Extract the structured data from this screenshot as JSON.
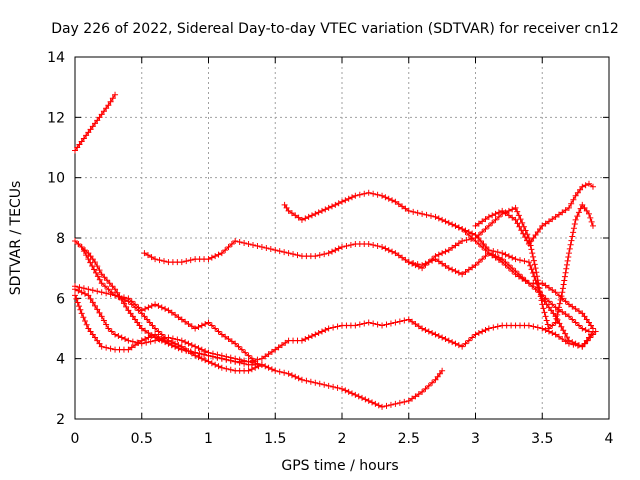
{
  "chart_data": {
    "type": "scatter",
    "title": "Day 226 of 2022, Sidereal Day-to-day VTEC variation (SDTVAR) for receiver cn12",
    "xlabel": "GPS time / hours",
    "ylabel": "SDTVAR / TECUs",
    "xlim": [
      0,
      4
    ],
    "ylim": [
      2,
      14
    ],
    "xticks": [
      "0",
      "0.5",
      "1",
      "1.5",
      "2",
      "2.5",
      "3",
      "3.5",
      "4"
    ],
    "yticks": [
      "2",
      "4",
      "6",
      "8",
      "10",
      "12",
      "14"
    ],
    "grid": true,
    "marker": "+",
    "color": "#ff0000",
    "series": [
      {
        "name": "s1",
        "x": [
          0.0,
          0.05,
          0.1,
          0.15,
          0.2,
          0.25,
          0.3
        ],
        "y": [
          10.9,
          11.2,
          11.5,
          11.8,
          12.1,
          12.4,
          12.75
        ]
      },
      {
        "name": "s2",
        "x": [
          0.0,
          0.05,
          0.1,
          0.2,
          0.3,
          0.4,
          0.5,
          0.6,
          0.7,
          0.8,
          0.9,
          1.0,
          1.1,
          1.2,
          1.3,
          1.35,
          1.4,
          1.5,
          1.6,
          1.7,
          1.8,
          1.9,
          2.0,
          2.1,
          2.2,
          2.3,
          2.4,
          2.5,
          2.6,
          2.7,
          2.75
        ],
        "y": [
          7.9,
          7.7,
          7.3,
          6.5,
          6.1,
          5.9,
          5.5,
          5.0,
          4.6,
          4.4,
          4.1,
          3.9,
          3.7,
          3.6,
          3.6,
          3.7,
          3.8,
          3.6,
          3.5,
          3.3,
          3.2,
          3.1,
          3.0,
          2.8,
          2.6,
          2.4,
          2.5,
          2.6,
          2.9,
          3.3,
          3.6
        ]
      },
      {
        "name": "s3",
        "x": [
          0.0,
          0.05,
          0.1,
          0.15,
          0.2,
          0.3,
          0.4,
          0.5,
          0.6,
          0.7,
          0.8,
          0.9,
          1.0,
          1.1,
          1.2,
          1.3,
          1.4,
          1.5,
          1.6,
          1.7,
          1.8,
          1.9,
          2.0,
          2.1,
          2.2,
          2.3,
          2.4,
          2.5,
          2.6,
          2.7,
          2.8,
          2.9,
          3.0,
          3.1,
          3.2,
          3.3,
          3.4,
          3.5,
          3.6,
          3.7,
          3.8,
          3.9
        ],
        "y": [
          6.1,
          5.5,
          5.0,
          4.7,
          4.4,
          4.3,
          4.3,
          4.6,
          4.8,
          4.5,
          4.3,
          4.2,
          4.1,
          4.0,
          3.9,
          3.9,
          4.0,
          4.3,
          4.6,
          4.6,
          4.8,
          5.0,
          5.1,
          5.1,
          5.2,
          5.1,
          5.2,
          5.3,
          5.0,
          4.8,
          4.6,
          4.4,
          4.8,
          5.0,
          5.1,
          5.1,
          5.1,
          5.0,
          4.8,
          4.5,
          4.4,
          4.9
        ]
      },
      {
        "name": "s4",
        "x": [
          0.0,
          0.1,
          0.2,
          0.3,
          0.4,
          0.5,
          0.6,
          0.7,
          0.8,
          0.9,
          1.0,
          1.1,
          1.2,
          1.3,
          1.35
        ],
        "y": [
          6.4,
          6.3,
          6.2,
          6.1,
          6.0,
          5.6,
          5.8,
          5.6,
          5.3,
          5.0,
          5.2,
          4.8,
          4.5,
          4.1,
          3.9
        ]
      },
      {
        "name": "s5",
        "x": [
          0.0,
          0.1,
          0.2,
          0.25,
          0.3,
          0.4,
          0.5,
          0.6,
          0.7,
          0.8,
          0.9,
          1.0,
          1.1,
          1.2,
          1.3,
          1.4
        ],
        "y": [
          6.3,
          6.1,
          5.4,
          5.0,
          4.8,
          4.6,
          4.5,
          4.6,
          4.7,
          4.6,
          4.4,
          4.2,
          4.1,
          4.0,
          3.9,
          3.8
        ]
      },
      {
        "name": "s6",
        "x": [
          0.52,
          0.6,
          0.7,
          0.8,
          0.9,
          1.0,
          1.1,
          1.2,
          1.3,
          1.4,
          1.5,
          1.6,
          1.7,
          1.8,
          1.9,
          2.0,
          2.1,
          2.2,
          2.3,
          2.4,
          2.5,
          2.6,
          2.7,
          2.8,
          2.9,
          3.0,
          3.1,
          3.2,
          3.3,
          3.4,
          3.45,
          3.5,
          3.55,
          3.6,
          3.65,
          3.7,
          3.75,
          3.8,
          3.85,
          3.88
        ],
        "y": [
          7.5,
          7.3,
          7.2,
          7.2,
          7.3,
          7.3,
          7.5,
          7.9,
          7.8,
          7.7,
          7.6,
          7.5,
          7.4,
          7.4,
          7.5,
          7.7,
          7.8,
          7.8,
          7.7,
          7.5,
          7.2,
          7.0,
          7.4,
          7.6,
          7.9,
          8.0,
          8.4,
          8.8,
          9.0,
          8.0,
          7.0,
          5.8,
          5.0,
          5.2,
          6.2,
          7.5,
          8.6,
          9.1,
          8.8,
          8.4
        ]
      },
      {
        "name": "s7",
        "x": [
          1.57,
          1.6,
          1.7,
          1.8,
          1.9,
          2.0,
          2.1,
          2.2,
          2.3,
          2.4,
          2.5,
          2.6,
          2.7,
          2.8,
          2.9,
          3.0,
          3.1,
          3.2,
          3.3,
          3.4,
          3.5,
          3.6,
          3.7,
          3.75,
          3.8,
          3.85
        ],
        "y": [
          9.1,
          8.9,
          8.6,
          8.8,
          9.0,
          9.2,
          9.4,
          9.5,
          9.4,
          9.2,
          8.9,
          8.8,
          8.7,
          8.5,
          8.3,
          7.9,
          7.5,
          7.2,
          6.8,
          6.5,
          6.1,
          5.7,
          5.4,
          5.2,
          5.0,
          4.9
        ]
      },
      {
        "name": "s8",
        "x": [
          2.5,
          2.6,
          2.7,
          2.8,
          2.9,
          3.0,
          3.1,
          3.2,
          3.3,
          3.4,
          3.5,
          3.6,
          3.7,
          3.8,
          3.85,
          3.88
        ],
        "y": [
          7.2,
          7.1,
          7.3,
          7.0,
          6.8,
          7.1,
          7.5,
          7.3,
          6.9,
          6.5,
          6.5,
          6.2,
          5.8,
          5.5,
          5.2,
          5.0
        ]
      },
      {
        "name": "s9",
        "x": [
          2.85,
          2.9,
          3.0,
          3.1,
          3.2,
          3.3,
          3.4,
          3.45,
          3.5,
          3.6,
          3.7,
          3.8,
          3.85,
          3.88
        ],
        "y": [
          8.4,
          8.3,
          8.1,
          7.6,
          7.5,
          7.3,
          7.2,
          6.6,
          6.0,
          5.4,
          4.6,
          4.4,
          4.7,
          4.9
        ]
      },
      {
        "name": "s10",
        "x": [
          3.0,
          3.1,
          3.2,
          3.3,
          3.4,
          3.5,
          3.6,
          3.7,
          3.75,
          3.8,
          3.85,
          3.88
        ],
        "y": [
          8.4,
          8.7,
          8.9,
          8.6,
          7.8,
          8.4,
          8.7,
          9.0,
          9.4,
          9.7,
          9.8,
          9.7
        ]
      },
      {
        "name": "s11",
        "x": [
          0.0,
          0.05,
          0.1,
          0.15,
          0.2,
          0.3,
          0.4,
          0.5,
          0.6,
          0.7,
          0.8,
          0.9,
          1.0,
          1.1,
          1.2,
          1.3,
          1.35
        ],
        "y": [
          7.9,
          7.7,
          7.5,
          7.2,
          6.8,
          6.3,
          5.6,
          5.0,
          4.7,
          4.5,
          4.3,
          4.2,
          4.1,
          4.0,
          3.9,
          3.8,
          3.8
        ]
      }
    ]
  }
}
